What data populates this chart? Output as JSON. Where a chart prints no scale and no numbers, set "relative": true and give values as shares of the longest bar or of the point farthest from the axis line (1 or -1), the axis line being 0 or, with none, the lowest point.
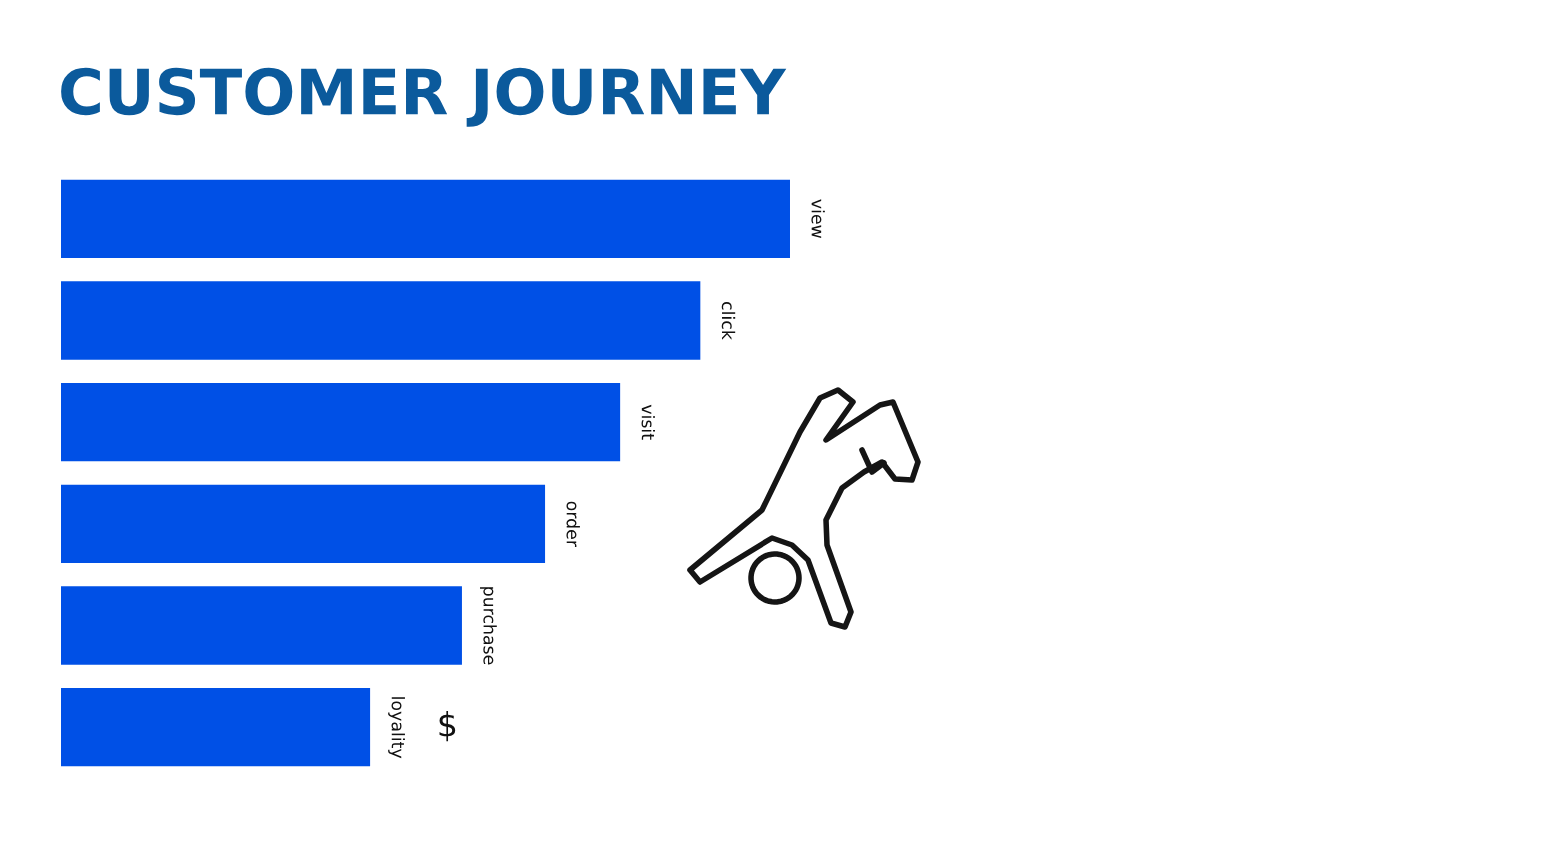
{
  "chart_data": {
    "type": "bar",
    "orientation": "horizontal",
    "relative": true,
    "title": "CUSTOMER JOURNEY",
    "categories": [
      "view",
      "click",
      "visit",
      "order",
      "purchase",
      "loyality"
    ],
    "values": [
      1,
      0.877,
      0.767,
      0.664,
      0.55,
      0.424
    ],
    "color": "#0050e6",
    "annotations": [
      "$"
    ]
  }
}
